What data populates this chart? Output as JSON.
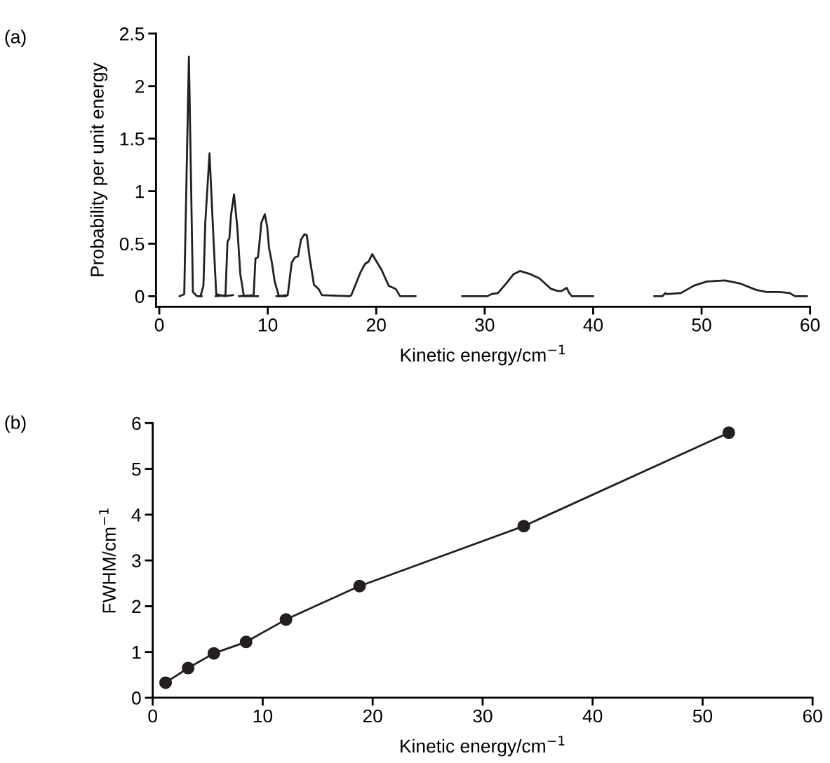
{
  "chart_data": [
    {
      "type": "line",
      "xlabel": "Kinetic energy/cm$^{−1}$",
      "ylabel": "Probability per unit energy",
      "annotations": [
        "(a)"
      ],
      "xlim": [
        -0.3,
        60
      ],
      "ylim": [
        -0.1,
        2.5
      ],
      "xticks": [
        0,
        10,
        20,
        30,
        40,
        50,
        60
      ],
      "yticks": [
        0,
        0.5,
        1,
        1.5,
        2,
        2.5
      ],
      "grid": false,
      "legend": false,
      "marker": "none",
      "line_style": "solid",
      "series": [
        {
          "color": "#231f20",
          "x": [
            1.87,
            2.3,
            2.73,
            3.1,
            3.5,
            3.9
          ],
          "values": [
            0,
            0.02,
            2.28,
            0.04,
            0,
            0
          ]
        },
        {
          "color": "#231f20",
          "x": [
            3.8,
            4.07,
            4.24,
            4.63,
            5.0,
            5.25,
            6.0,
            6.8
          ],
          "values": [
            0,
            0.1,
            0.7,
            1.36,
            0.54,
            0.02,
            0,
            0.01
          ]
        },
        {
          "color": "#231f20",
          "x": [
            5.2,
            6.1,
            6.29,
            6.46,
            6.61,
            6.89,
            7.19,
            7.47,
            7.8,
            9.09
          ],
          "values": [
            0,
            0.01,
            0.52,
            0.55,
            0.77,
            0.97,
            0.66,
            0.21,
            0,
            0
          ]
        },
        {
          "color": "#231f20",
          "x": [
            7.36,
            8.7,
            8.87,
            9.09,
            9.19,
            9.41,
            9.73,
            9.95,
            10.12,
            10.38,
            10.64,
            11.03,
            11.67
          ],
          "values": [
            0,
            0.01,
            0.36,
            0.37,
            0.46,
            0.7,
            0.78,
            0.66,
            0.46,
            0.32,
            0.14,
            0,
            0
          ]
        },
        {
          "color": "#231f20",
          "x": [
            10.81,
            11.84,
            12.21,
            12.51,
            12.79,
            13.07,
            13.39,
            13.6,
            13.87,
            14.26,
            14.68,
            15.0,
            17.49
          ],
          "values": [
            0,
            0.01,
            0.32,
            0.37,
            0.38,
            0.54,
            0.59,
            0.58,
            0.36,
            0.11,
            0.07,
            0.01,
            0
          ]
        },
        {
          "color": "#231f20",
          "x": [
            17.49,
            17.7,
            18.56,
            18.99,
            19.3,
            19.64,
            19.86,
            20.5,
            21.15,
            21.8,
            22.2,
            23.62
          ],
          "values": [
            0,
            0.01,
            0.23,
            0.31,
            0.33,
            0.4,
            0.36,
            0.25,
            0.1,
            0.07,
            0,
            0
          ]
        },
        {
          "color": "#231f20",
          "x": [
            27.94,
            30.26,
            30.62,
            31.22,
            32.06,
            32.66,
            33.25,
            34.21,
            35.05,
            36.12,
            36.72,
            37.1,
            37.56,
            37.79,
            38.04,
            40.0
          ],
          "values": [
            0,
            0,
            0.02,
            0.03,
            0.13,
            0.21,
            0.24,
            0.21,
            0.17,
            0.07,
            0.05,
            0.05,
            0.08,
            0.03,
            0,
            0
          ]
        },
        {
          "color": "#231f20",
          "x": [
            45.65,
            46.4,
            46.64,
            46.8,
            48.09,
            49.28,
            50.48,
            52.15,
            53.59,
            55.03,
            55.98,
            57.17,
            58.13,
            58.61,
            59.7
          ],
          "values": [
            0,
            0,
            0.03,
            0.02,
            0.03,
            0.1,
            0.14,
            0.15,
            0.12,
            0.06,
            0.04,
            0.04,
            0.03,
            0,
            0
          ]
        }
      ]
    },
    {
      "type": "line",
      "xlabel": "Kinetic energy/cm$^{−1}$",
      "ylabel": "FWHM/cm$^{−1}$",
      "annotations": [
        "(b)"
      ],
      "xlim": [
        0,
        60
      ],
      "ylim": [
        0,
        6
      ],
      "xticks": [
        0,
        10,
        20,
        30,
        40,
        50,
        60
      ],
      "yticks": [
        0,
        1,
        2,
        3,
        4,
        5,
        6
      ],
      "grid": false,
      "legend": false,
      "marker": "circle",
      "line_style": "solid",
      "series": [
        {
          "color": "#231f20",
          "x": [
            1.17,
            3.22,
            5.56,
            8.49,
            12.12,
            18.81,
            33.74,
            52.38
          ],
          "values": [
            0.33,
            0.65,
            0.97,
            1.22,
            1.71,
            2.44,
            3.75,
            5.79
          ]
        }
      ]
    }
  ]
}
